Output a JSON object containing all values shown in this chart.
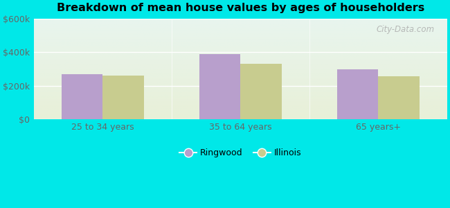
{
  "title": "Breakdown of mean house values by ages of householders",
  "categories": [
    "25 to 34 years",
    "35 to 64 years",
    "65 years+"
  ],
  "ringwood_values": [
    270000,
    390000,
    300000
  ],
  "illinois_values": [
    260000,
    330000,
    258000
  ],
  "ringwood_color": "#b89fcc",
  "illinois_color": "#c8cc8f",
  "bar_width": 0.3,
  "ylim": [
    0,
    600000
  ],
  "yticks": [
    0,
    200000,
    400000,
    600000
  ],
  "ytick_labels": [
    "$0",
    "$200k",
    "$400k",
    "$600k"
  ],
  "legend_ringwood": "Ringwood",
  "legend_illinois": "Illinois",
  "outer_bg": "#00e8e8",
  "plot_bg_top": "#e8f5ee",
  "plot_bg_bottom": "#e8f0d8",
  "watermark": "City-Data.com"
}
